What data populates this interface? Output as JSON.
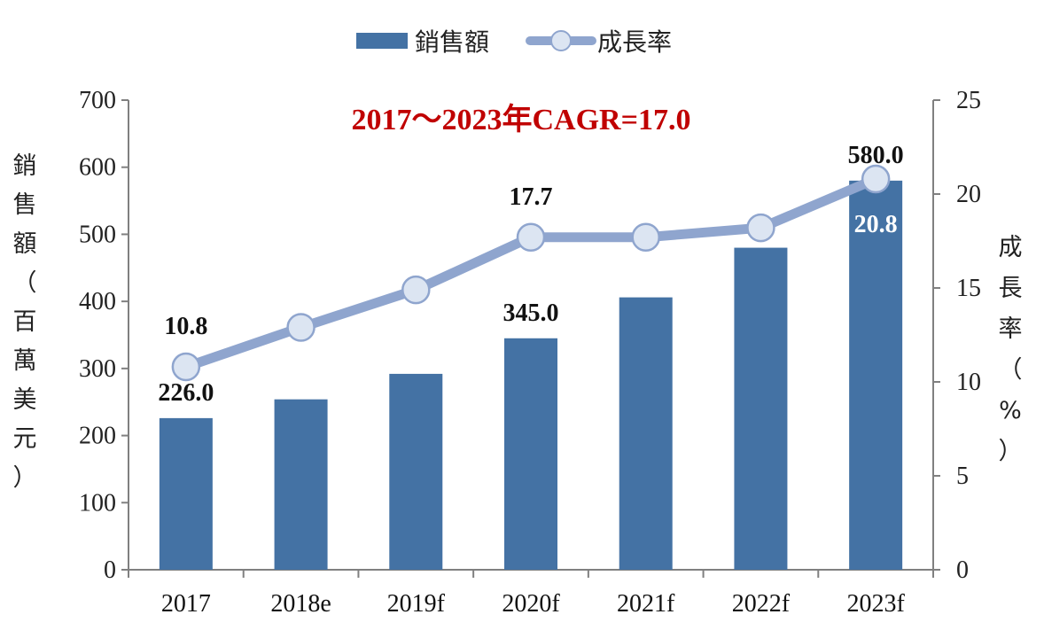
{
  "colors": {
    "bar": "#4472A4",
    "line": "#8FA5CE",
    "marker_fill": "#DCE5F2",
    "annotation": "#C00000",
    "axis": "#808080"
  },
  "legend": {
    "bar_label": "銷售額",
    "line_label": "成長率"
  },
  "annotation": "2017～2023年CAGR=17.0",
  "axes": {
    "left_label_chars": [
      "銷",
      "售",
      "額",
      "（",
      "百",
      "萬",
      "美",
      "元",
      "）"
    ],
    "right_label_chars": [
      "成",
      "長",
      "率",
      "（",
      "%",
      "）"
    ],
    "left_ticks": [
      "0",
      "100",
      "200",
      "300",
      "400",
      "500",
      "600",
      "700"
    ],
    "right_ticks": [
      "0",
      "5",
      "10",
      "15",
      "20",
      "25"
    ]
  },
  "chart_data": {
    "type": "bar",
    "categories": [
      "2017",
      "2018e",
      "2019f",
      "2020f",
      "2021f",
      "2022f",
      "2023f"
    ],
    "series": [
      {
        "name": "銷售額",
        "type": "bar",
        "axis": "left",
        "values": [
          226.0,
          254.0,
          292.0,
          345.0,
          406.0,
          480.0,
          580.0
        ],
        "labels": [
          "226.0",
          "",
          "",
          "345.0",
          "",
          "",
          "580.0"
        ]
      },
      {
        "name": "成長率",
        "type": "line",
        "axis": "right",
        "values": [
          10.8,
          12.9,
          14.9,
          17.7,
          17.7,
          18.2,
          20.8
        ],
        "labels": [
          "10.8",
          "",
          "",
          "17.7",
          "",
          "",
          "20.8"
        ]
      }
    ],
    "ylim_left": [
      0,
      700
    ],
    "ylim_right": [
      0,
      25
    ],
    "legend_position": "top-center",
    "grid": false
  }
}
